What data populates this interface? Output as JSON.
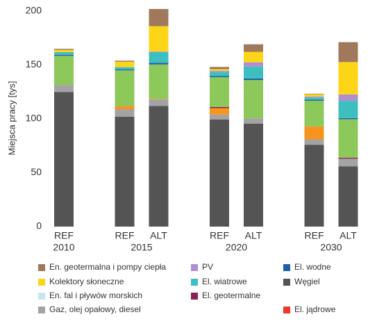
{
  "chart_data": {
    "type": "stacked-bar",
    "y_label": "Miejsca pracy [tys]",
    "groups": [
      {
        "label": "2010",
        "categories": [
          "REF"
        ]
      },
      {
        "label": "2015",
        "categories": [
          "REF",
          "ALT"
        ]
      },
      {
        "label": "2020",
        "categories": [
          "REF",
          "ALT"
        ]
      },
      {
        "label": "2030",
        "categories": [
          "REF",
          "ALT"
        ]
      }
    ],
    "ylim": [
      0,
      200
    ],
    "yticks": [
      0,
      50,
      100,
      150,
      200
    ],
    "grid": false,
    "series": [
      {
        "name": "Węgiel",
        "color": "#545454",
        "values": [
          125,
          102,
          112,
          99.5,
          95.5,
          76,
          56
        ]
      },
      {
        "name": "Gaz, olej opałowy, diesel",
        "color": "#a3a3a3",
        "values": [
          6.5,
          7,
          6,
          4.5,
          5,
          5,
          7
        ]
      },
      {
        "color": "#f7941d",
        "values": [
          0,
          3,
          0.5,
          6,
          0,
          12,
          0
        ]
      },
      {
        "name": "El. jądrowe",
        "color": "#e83a2a",
        "values": [
          0,
          0,
          0,
          0,
          0,
          0,
          0
        ]
      },
      {
        "name": "En. fal i pływów morskich",
        "color": "#c9e6f0",
        "values": [
          0,
          0,
          0,
          0,
          0,
          0,
          0
        ]
      },
      {
        "name": "El. geotermalne",
        "color": "#8b2252",
        "values": [
          0,
          0,
          0,
          1,
          0,
          0,
          1
        ]
      },
      {
        "color": "#8dc85a",
        "values": [
          27,
          33,
          32,
          27.7,
          35.5,
          23.8,
          35.7
        ]
      },
      {
        "name": "El. wodne",
        "color": "#1f5ea8",
        "values": [
          1,
          1,
          1.5,
          1,
          1.5,
          1,
          1
        ]
      },
      {
        "name": "El. wiatrowe",
        "color": "#3dbfbf",
        "values": [
          2.5,
          2,
          10,
          4,
          11,
          2,
          16
        ]
      },
      {
        "name": "PV",
        "color": "#b18fcf",
        "values": [
          0,
          0,
          0.5,
          1,
          4,
          1,
          6
        ]
      },
      {
        "name": "Kolektory słoneczne",
        "color": "#fcd616",
        "values": [
          2,
          5,
          23.5,
          1.5,
          9.7,
          2,
          30
        ]
      },
      {
        "name": "En. geotermalna i pompy ciepła",
        "color": "#a0785a",
        "values": [
          1,
          1,
          16,
          2,
          7,
          0.5,
          18.5
        ]
      }
    ]
  }
}
